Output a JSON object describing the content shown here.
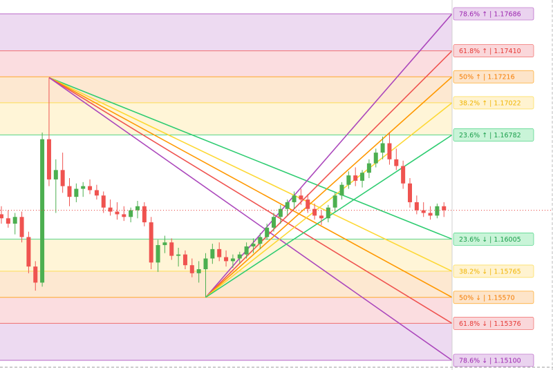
{
  "chart_data": {
    "type": "candlestick",
    "ylim": [
      1.151,
      1.17686
    ],
    "upper_levels": [
      {
        "label": "78.6% ↑ | 1.17686",
        "value": 1.17686,
        "color": "#ab47bc",
        "text_color": "#9c27b0",
        "fill": "#ead3ef"
      },
      {
        "label": "61.8% ↑ | 1.17410",
        "value": 1.1741,
        "color": "#ef5350",
        "text_color": "#e53935",
        "fill": "#fad7da"
      },
      {
        "label": "50% ↑ | 1.17216",
        "value": 1.17216,
        "color": "#ff9800",
        "text_color": "#f57c00",
        "fill": "#fde4c9"
      },
      {
        "label": "38.2% ↑ | 1.17022",
        "value": 1.17022,
        "color": "#fdd835",
        "text_color": "#f0b400",
        "fill": "#fff3d0"
      },
      {
        "label": "23.6% ↑ | 1.16782",
        "value": 1.16782,
        "color": "#2ecc71",
        "text_color": "#1a9e4b",
        "fill": "#c9f4d8"
      }
    ],
    "lower_levels": [
      {
        "label": "23.6% ↓ | 1.16005",
        "value": 1.16005,
        "color": "#2ecc71",
        "text_color": "#1a9e4b",
        "fill": "#c9f4d8"
      },
      {
        "label": "38.2% ↓ | 1.15765",
        "value": 1.15765,
        "color": "#fdd835",
        "text_color": "#f0b400",
        "fill": "#fff3d0"
      },
      {
        "label": "50% ↓ | 1.15570",
        "value": 1.1557,
        "color": "#ff9800",
        "text_color": "#f57c00",
        "fill": "#fde4c9"
      },
      {
        "label": "61.8% ↓ | 1.15376",
        "value": 1.15376,
        "color": "#ef5350",
        "text_color": "#e53935",
        "fill": "#fad7da"
      },
      {
        "label": "78.6% ↓ | 1.15100",
        "value": 1.151,
        "color": "#ab47bc",
        "text_color": "#9c27b0",
        "fill": "#ead3ef"
      }
    ],
    "up_color": "#4caf50",
    "down_color": "#ef5350",
    "candles": [
      [
        1.1619,
        1.1625,
        1.1612,
        1.1616
      ],
      [
        1.1616,
        1.1622,
        1.1609,
        1.1612
      ],
      [
        1.1612,
        1.162,
        1.1604,
        1.1617
      ],
      [
        1.1617,
        1.1621,
        1.1598,
        1.1602
      ],
      [
        1.1602,
        1.1606,
        1.1575,
        1.158
      ],
      [
        1.158,
        1.1584,
        1.1562,
        1.1568
      ],
      [
        1.1568,
        1.168,
        1.1565,
        1.1675
      ],
      [
        1.1675,
        1.1721,
        1.164,
        1.1645
      ],
      [
        1.1645,
        1.166,
        1.162,
        1.1652
      ],
      [
        1.1652,
        1.1665,
        1.1635,
        1.164
      ],
      [
        1.164,
        1.1646,
        1.1625,
        1.1632
      ],
      [
        1.1632,
        1.1642,
        1.1628,
        1.1638
      ],
      [
        1.1638,
        1.1643,
        1.1632,
        1.164
      ],
      [
        1.164,
        1.1645,
        1.1634,
        1.1637
      ],
      [
        1.1637,
        1.1641,
        1.163,
        1.1633
      ],
      [
        1.1633,
        1.1636,
        1.162,
        1.1624
      ],
      [
        1.1624,
        1.163,
        1.1618,
        1.1621
      ],
      [
        1.1621,
        1.1628,
        1.1615,
        1.1619
      ],
      [
        1.1619,
        1.1625,
        1.1614,
        1.1617
      ],
      [
        1.1617,
        1.1624,
        1.1613,
        1.1622
      ],
      [
        1.1622,
        1.1629,
        1.1616,
        1.1625
      ],
      [
        1.1625,
        1.1628,
        1.161,
        1.1613
      ],
      [
        1.1613,
        1.1617,
        1.1578,
        1.1583
      ],
      [
        1.1583,
        1.16,
        1.1576,
        1.1596
      ],
      [
        1.1596,
        1.1603,
        1.159,
        1.1598
      ],
      [
        1.1598,
        1.1601,
        1.1585,
        1.1588
      ],
      [
        1.1588,
        1.1594,
        1.158,
        1.1589
      ],
      [
        1.1589,
        1.1592,
        1.1578,
        1.1581
      ],
      [
        1.1581,
        1.1586,
        1.1572,
        1.1575
      ],
      [
        1.1575,
        1.1584,
        1.1568,
        1.1578
      ],
      [
        1.1578,
        1.159,
        1.1557,
        1.1586
      ],
      [
        1.1586,
        1.1597,
        1.1582,
        1.1593
      ],
      [
        1.1593,
        1.1598,
        1.1584,
        1.1587
      ],
      [
        1.1587,
        1.1592,
        1.158,
        1.1584
      ],
      [
        1.1584,
        1.1589,
        1.1579,
        1.1586
      ],
      [
        1.1586,
        1.1591,
        1.1582,
        1.1589
      ],
      [
        1.1589,
        1.1598,
        1.1586,
        1.1595
      ],
      [
        1.1595,
        1.1601,
        1.159,
        1.1597
      ],
      [
        1.1597,
        1.1605,
        1.1593,
        1.1602
      ],
      [
        1.1602,
        1.1612,
        1.16,
        1.1609
      ],
      [
        1.1609,
        1.162,
        1.1606,
        1.1617
      ],
      [
        1.1617,
        1.1626,
        1.1612,
        1.1623
      ],
      [
        1.1623,
        1.163,
        1.1618,
        1.1628
      ],
      [
        1.1628,
        1.1636,
        1.1623,
        1.1633
      ],
      [
        1.1633,
        1.1638,
        1.1626,
        1.163
      ],
      [
        1.163,
        1.1634,
        1.162,
        1.1623
      ],
      [
        1.1623,
        1.1627,
        1.1615,
        1.1618
      ],
      [
        1.1618,
        1.1622,
        1.1611,
        1.1616
      ],
      [
        1.1616,
        1.1626,
        1.1613,
        1.1624
      ],
      [
        1.1624,
        1.1635,
        1.1621,
        1.1633
      ],
      [
        1.1633,
        1.1643,
        1.163,
        1.1641
      ],
      [
        1.1641,
        1.1651,
        1.1638,
        1.1648
      ],
      [
        1.1648,
        1.1654,
        1.164,
        1.1644
      ],
      [
        1.1644,
        1.1652,
        1.1639,
        1.165
      ],
      [
        1.165,
        1.166,
        1.1646,
        1.1657
      ],
      [
        1.1657,
        1.1668,
        1.1654,
        1.1665
      ],
      [
        1.1665,
        1.1677,
        1.166,
        1.1672
      ],
      [
        1.1672,
        1.168,
        1.1656,
        1.166
      ],
      [
        1.166,
        1.1668,
        1.1652,
        1.1655
      ],
      [
        1.1655,
        1.1659,
        1.1638,
        1.1642
      ],
      [
        1.1642,
        1.1646,
        1.1624,
        1.1628
      ],
      [
        1.1628,
        1.1633,
        1.1619,
        1.1622
      ],
      [
        1.1622,
        1.1628,
        1.1617,
        1.162
      ],
      [
        1.162,
        1.1625,
        1.1615,
        1.1618
      ],
      [
        1.1618,
        1.1627,
        1.1616,
        1.1625
      ],
      [
        1.1625,
        1.1628,
        1.1617,
        1.1622
      ]
    ]
  }
}
